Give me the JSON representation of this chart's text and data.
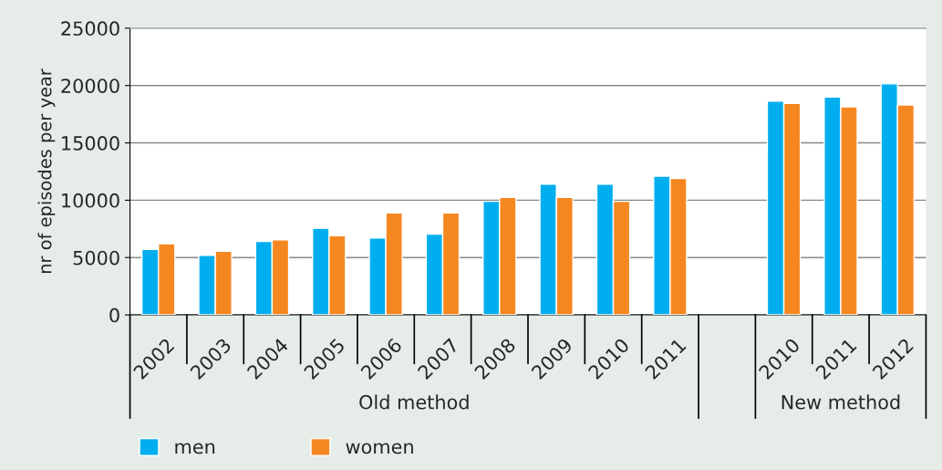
{
  "chart_data": {
    "type": "bar",
    "ylabel": "nr of episodes per year",
    "categories": [
      "2002",
      "2003",
      "2004",
      "2005",
      "2006",
      "2007",
      "2008",
      "2009",
      "2010",
      "2011",
      null,
      "2010",
      "2011",
      "2012"
    ],
    "series": [
      {
        "name": "men",
        "color": "#00aeef",
        "values": [
          5700,
          5200,
          6400,
          7550,
          6700,
          7050,
          9900,
          11400,
          11400,
          12100,
          null,
          18650,
          19000,
          20150
        ]
      },
      {
        "name": "women",
        "color": "#f58720",
        "values": [
          6200,
          5550,
          6550,
          6900,
          8900,
          8900,
          10250,
          10250,
          9900,
          11900,
          null,
          18450,
          18150,
          18300
        ]
      }
    ],
    "annotations": [
      "Old method",
      "New method"
    ],
    "ylim": [
      0,
      25000
    ],
    "yticks": [
      0,
      5000,
      10000,
      15000,
      20000,
      25000
    ],
    "grid": "y",
    "legend": "bottom left"
  }
}
